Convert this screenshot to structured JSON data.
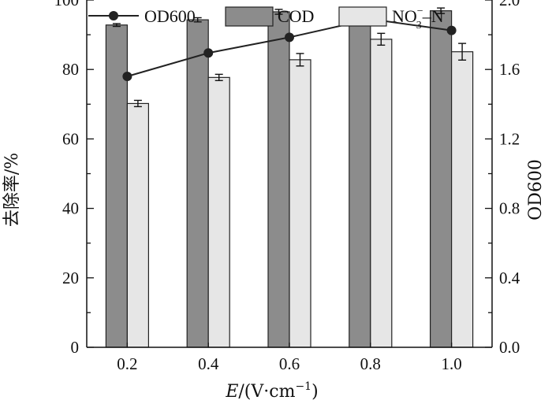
{
  "chart_data": {
    "type": "bar",
    "categories": [
      "0.2",
      "0.4",
      "0.6",
      "0.8",
      "1.0"
    ],
    "xlabel": "E/(V·cm⁻¹)",
    "xlabel_italic_part": "E",
    "xlabel_rest": "/(V·cm",
    "xlabel_sup": "−1",
    "xlabel_close": ")",
    "ylabel_left": "去除率/%",
    "ylabel_right": "OD600",
    "ylim_left": [
      0,
      100
    ],
    "ylim_right": [
      0.0,
      2.0
    ],
    "yticks_left": [
      0,
      20,
      40,
      60,
      80,
      100
    ],
    "yticks_right": [
      "0.0",
      "0.4",
      "0.8",
      "1.2",
      "1.6",
      "2.0"
    ],
    "legend_position": "top",
    "series": [
      {
        "name": "COD",
        "kind": "bar",
        "axis": "left",
        "color": "#8c8c8c",
        "values": [
          92.8,
          94.3,
          96.6,
          97.1,
          96.9
        ],
        "errors": [
          0.4,
          0.6,
          0.7,
          0.6,
          0.8
        ]
      },
      {
        "name": "NO₃⁻–N",
        "label_main": "NO",
        "label_sub": "3",
        "label_sup": "−",
        "label_tail": "–N",
        "kind": "bar",
        "axis": "left",
        "color": "#e6e6e6",
        "values": [
          70.2,
          77.7,
          82.8,
          88.7,
          85.1
        ],
        "errors": [
          0.9,
          0.9,
          1.8,
          1.7,
          2.4
        ]
      },
      {
        "name": "OD600",
        "kind": "line",
        "axis": "right",
        "color": "#222222",
        "values": [
          1.56,
          1.695,
          1.785,
          1.89,
          1.825
        ]
      }
    ]
  }
}
